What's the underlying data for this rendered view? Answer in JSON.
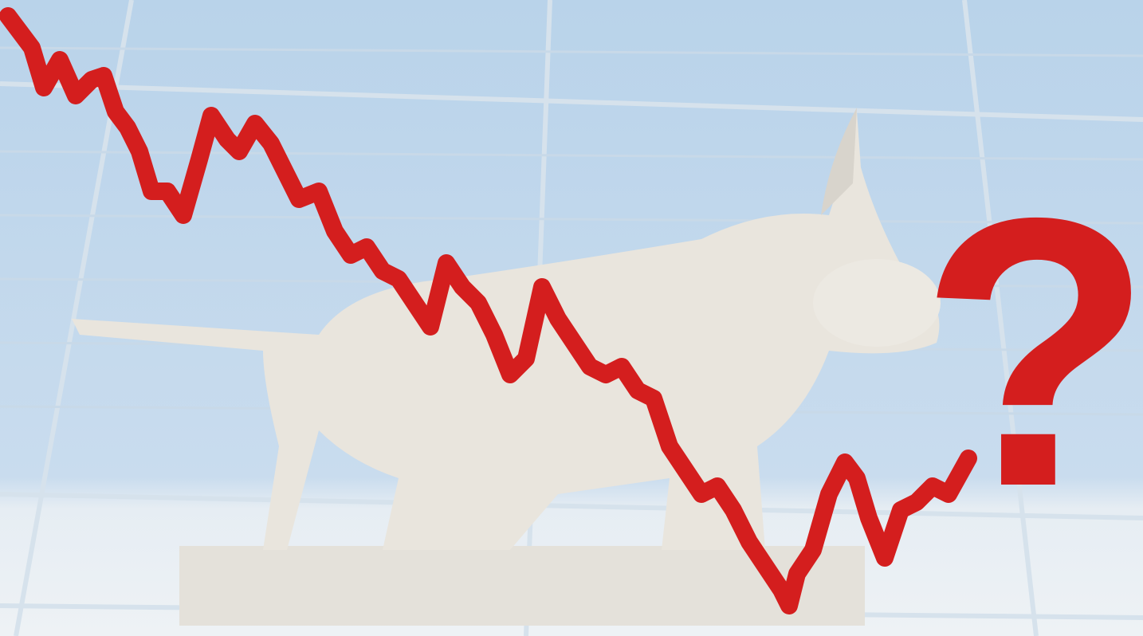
{
  "image": {
    "question_mark": "?"
  }
}
